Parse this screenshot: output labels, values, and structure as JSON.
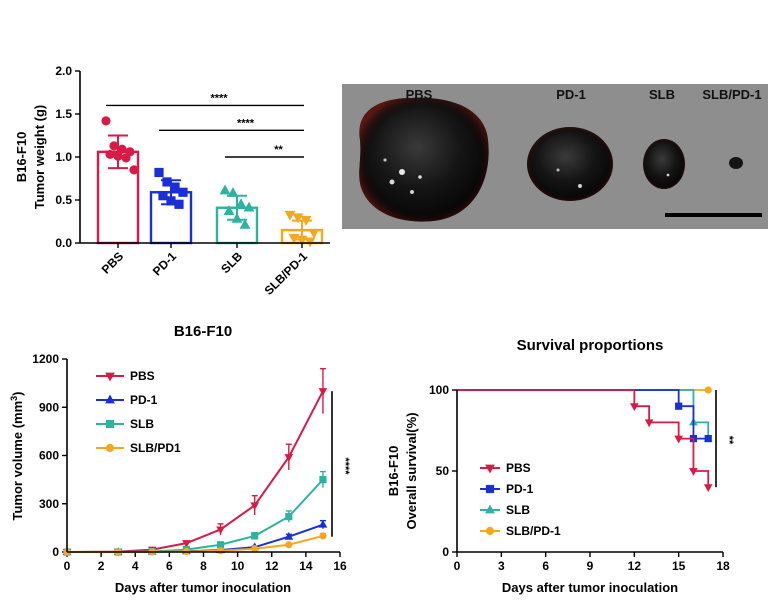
{
  "chart_data": [
    {
      "type": "bar",
      "id": "tumor_weight",
      "ylabel_line1": "B16-F10",
      "ylabel_line2": "Tumor weight (g)",
      "ylim": [
        0,
        2.0
      ],
      "yticks": [
        "0.0",
        "0.5",
        "1.0",
        "1.5",
        "2.0"
      ],
      "categories": [
        "PBS",
        "PD-1",
        "SLB",
        "SLB/PD-1"
      ],
      "values": [
        1.06,
        0.59,
        0.41,
        0.15
      ],
      "errors": [
        0.19,
        0.14,
        0.14,
        0.11
      ],
      "colors": [
        "#d81b46",
        "#1a2fd6",
        "#2fb3a1",
        "#f5a81e"
      ],
      "points": [
        [
          1.42,
          1.13,
          1.09,
          1.06,
          1.03,
          1.01,
          0.99,
          0.85
        ],
        [
          0.82,
          0.71,
          0.65,
          0.59,
          0.55,
          0.49,
          0.45
        ],
        [
          0.61,
          0.58,
          0.45,
          0.41,
          0.37,
          0.28,
          0.21
        ],
        [
          0.33,
          0.3,
          0.27,
          0.12,
          0.06,
          0.04,
          0.02
        ]
      ],
      "markers": [
        "circle",
        "square",
        "triangle",
        "triangle-down"
      ],
      "significance": [
        {
          "from": "PBS",
          "to": "SLB/PD-1",
          "y": 1.6,
          "label": "****"
        },
        {
          "from": "PD-1",
          "to": "SLB/PD-1",
          "y": 1.31,
          "label": "****"
        },
        {
          "from": "SLB",
          "to": "SLB/PD-1",
          "y": 1.0,
          "label": "**"
        }
      ]
    },
    {
      "type": "line",
      "id": "tumor_volume",
      "title": "B16-F10",
      "xlabel": "Days after tumor inoculation",
      "ylabel": "Tumor volume (mm",
      "ylabel_sup": "3",
      "ylabel_close": ")",
      "xlim": [
        0,
        16
      ],
      "ylim": [
        0,
        1200
      ],
      "xticks": [
        "0",
        "2",
        "4",
        "6",
        "8",
        "10",
        "12",
        "14",
        "16"
      ],
      "yticks": [
        "0",
        "300",
        "600",
        "900",
        "1200"
      ],
      "x": [
        0,
        3,
        5,
        7,
        9,
        11,
        13,
        15
      ],
      "series": [
        {
          "name": "PBS",
          "color": "#d81b46",
          "marker": "triangle-down",
          "values": [
            0,
            2,
            15,
            55,
            140,
            290,
            590,
            1000
          ],
          "errors": [
            0,
            2,
            5,
            12,
            35,
            60,
            80,
            140
          ]
        },
        {
          "name": "PD-1",
          "color": "#1a2fd6",
          "marker": "triangle",
          "values": [
            0,
            0,
            2,
            5,
            12,
            30,
            95,
            170
          ],
          "errors": [
            0,
            0,
            1,
            2,
            3,
            6,
            15,
            25
          ]
        },
        {
          "name": "SLB",
          "color": "#2fb3a1",
          "marker": "square",
          "values": [
            0,
            0,
            3,
            15,
            45,
            100,
            220,
            450
          ],
          "errors": [
            0,
            0,
            1,
            3,
            8,
            20,
            35,
            50
          ]
        },
        {
          "name": "SLB/PD1",
          "color": "#f5a81e",
          "marker": "circle",
          "values": [
            0,
            0,
            1,
            3,
            8,
            20,
            45,
            100
          ],
          "errors": [
            0,
            0,
            1,
            1,
            2,
            4,
            8,
            15
          ]
        }
      ],
      "significance": {
        "label": "****"
      }
    },
    {
      "type": "line",
      "id": "survival",
      "title": "Survival proportions",
      "xlabel": "Days after tumor inoculation",
      "ylabel_line1": "B16-F10",
      "ylabel_line2": "Overall survival(%)",
      "xlim": [
        0,
        18
      ],
      "ylim": [
        0,
        100
      ],
      "xticks": [
        "0",
        "3",
        "6",
        "9",
        "12",
        "15",
        "18"
      ],
      "yticks": [
        "0",
        "50",
        "100"
      ],
      "series": [
        {
          "name": "PBS",
          "color": "#d81b46",
          "marker": "triangle-down",
          "steps": [
            [
              0,
              100
            ],
            [
              12,
              100
            ],
            [
              12,
              90
            ],
            [
              13,
              90
            ],
            [
              13,
              80
            ],
            [
              15,
              80
            ],
            [
              15,
              70
            ],
            [
              16,
              70
            ],
            [
              16,
              50
            ],
            [
              17,
              50
            ],
            [
              17,
              40
            ]
          ]
        },
        {
          "name": "PD-1",
          "color": "#1a2fd6",
          "marker": "square",
          "steps": [
            [
              0,
              100
            ],
            [
              15,
              100
            ],
            [
              15,
              90
            ],
            [
              16,
              90
            ],
            [
              16,
              70
            ],
            [
              17,
              70
            ]
          ]
        },
        {
          "name": "SLB",
          "color": "#2fb3a1",
          "marker": "triangle",
          "steps": [
            [
              0,
              100
            ],
            [
              16,
              100
            ],
            [
              16,
              80
            ],
            [
              17,
              80
            ],
            [
              17,
              70
            ]
          ]
        },
        {
          "name": "SLB/PD-1",
          "color": "#f5a81e",
          "marker": "circle",
          "steps": [
            [
              0,
              100
            ],
            [
              17,
              100
            ]
          ]
        }
      ],
      "significance": {
        "label": "**"
      }
    }
  ],
  "photo": {
    "labels": [
      "PBS",
      "PD-1",
      "SLB",
      "SLB/PD-1"
    ]
  }
}
